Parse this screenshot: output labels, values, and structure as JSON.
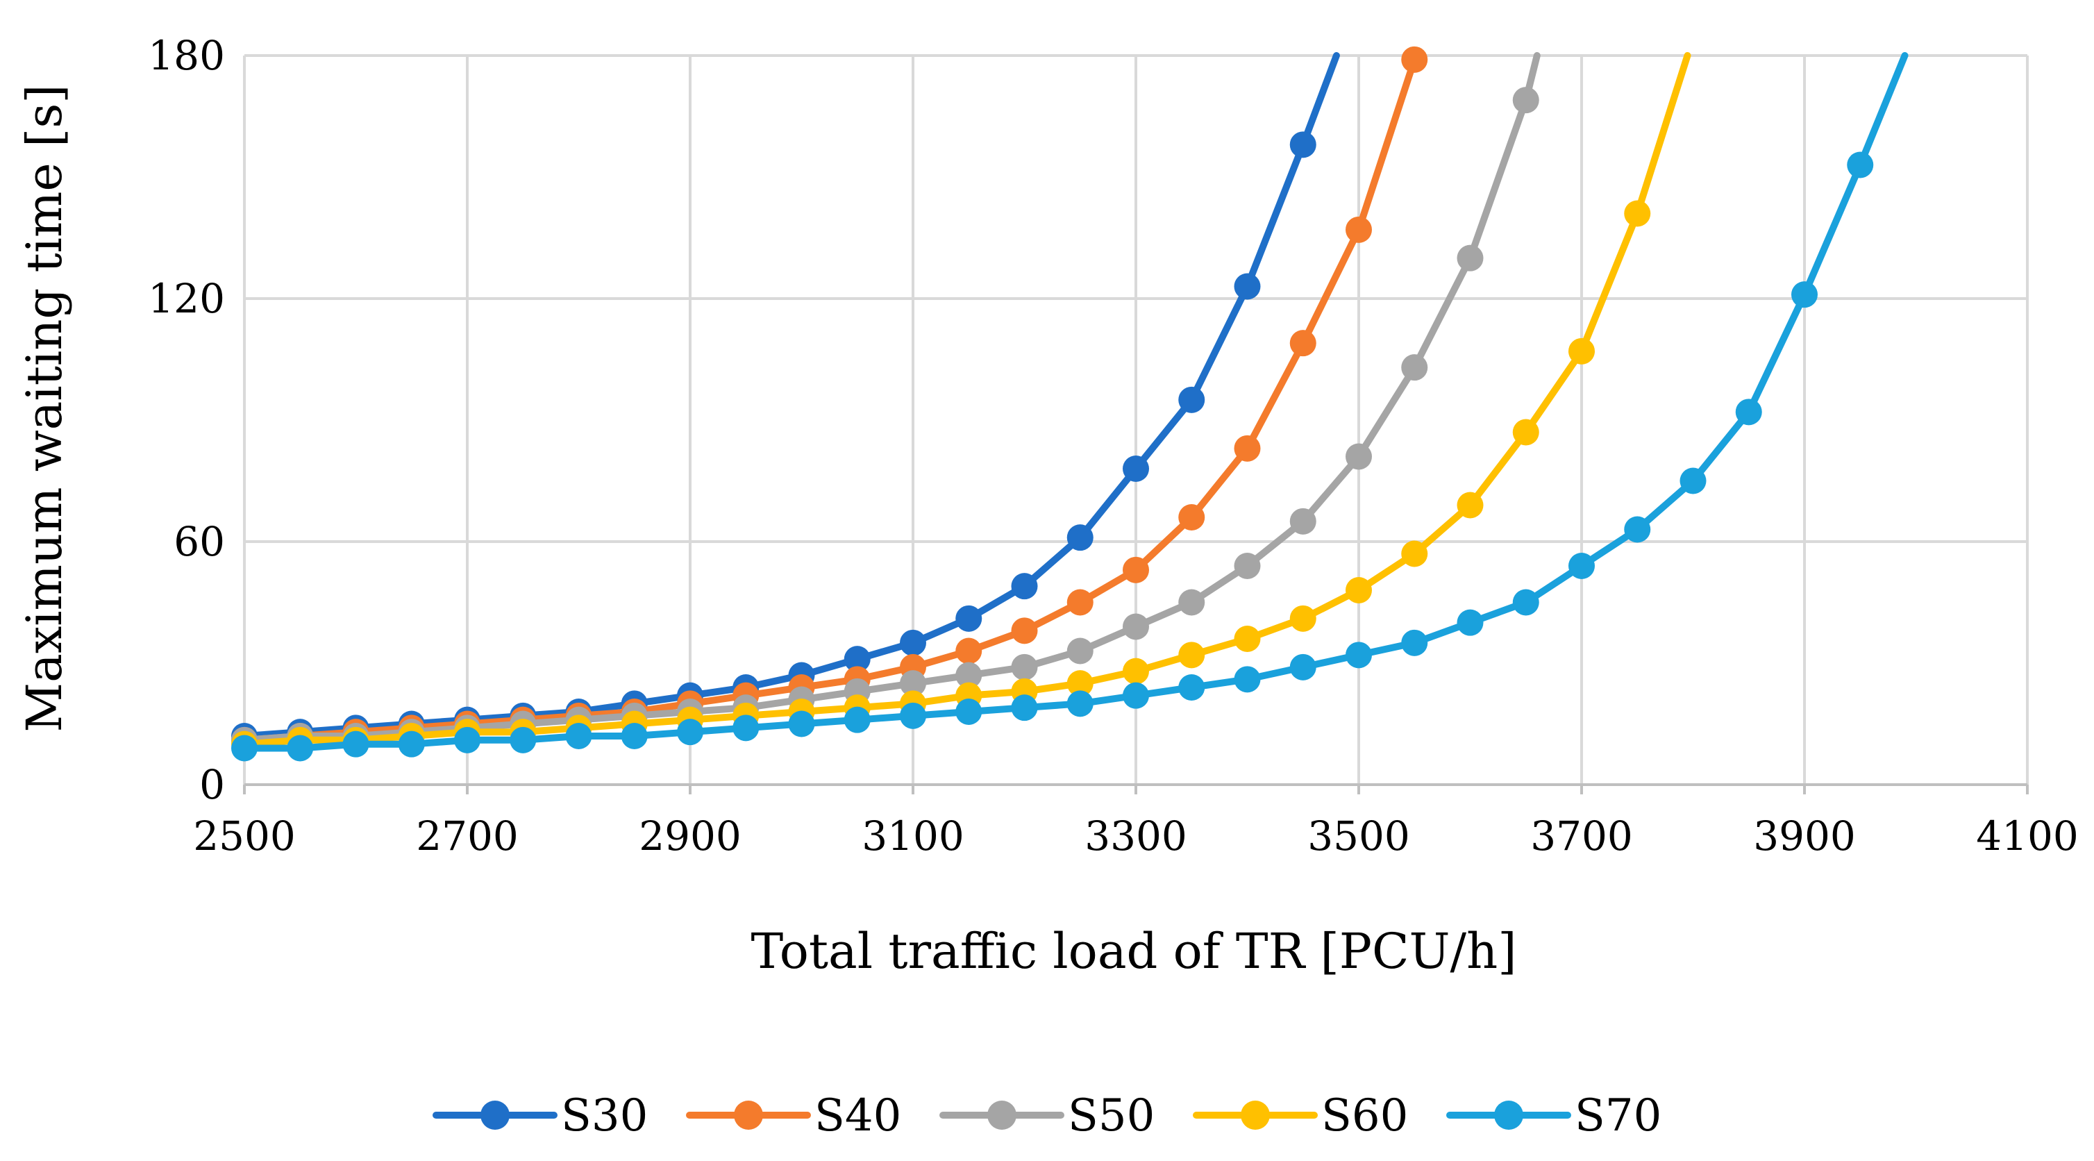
{
  "chart_data": {
    "type": "line",
    "title": "",
    "xlabel": "Total traffic load of TR [PCU/h]",
    "ylabel": "Maximum waiting time [s]",
    "xlim": [
      2500,
      4100
    ],
    "ylim": [
      0,
      180
    ],
    "x_ticks": [
      "2500",
      "2700",
      "2900",
      "3100",
      "3300",
      "3500",
      "3700",
      "3900",
      "4100"
    ],
    "y_ticks": [
      "0",
      "60",
      "120",
      "180"
    ],
    "grid": true,
    "legend_position": "bottom",
    "x": [
      2500,
      2550,
      2600,
      2650,
      2700,
      2750,
      2800,
      2850,
      2900,
      2950,
      3000,
      3050,
      3100,
      3150,
      3200,
      3250,
      3300,
      3350,
      3400,
      3450,
      3500,
      3550,
      3600,
      3650,
      3700,
      3750,
      3800,
      3850,
      3900,
      3950
    ],
    "series": [
      {
        "name": "S30",
        "color": "#1f6fc8",
        "values": [
          12,
          13,
          14,
          15,
          16,
          17,
          18,
          20,
          22,
          24,
          27,
          31,
          35,
          41,
          49,
          61,
          78,
          95,
          123,
          158,
          null,
          null,
          null,
          null,
          null,
          null,
          null,
          null,
          null,
          null
        ],
        "line_end": [
          3480,
          180
        ]
      },
      {
        "name": "S40",
        "color": "#f47b2c",
        "values": [
          11,
          12,
          13,
          14,
          15,
          16,
          17,
          18,
          20,
          22,
          24,
          26,
          29,
          33,
          38,
          45,
          53,
          66,
          83,
          109,
          137,
          179,
          null,
          null,
          null,
          null,
          null,
          null,
          null,
          null
        ],
        "line_end": null
      },
      {
        "name": "S50",
        "color": "#a5a5a5",
        "values": [
          11,
          12,
          12,
          13,
          14,
          15,
          16,
          17,
          18,
          19,
          21,
          23,
          25,
          27,
          29,
          33,
          39,
          45,
          54,
          65,
          81,
          103,
          130,
          169,
          null,
          null,
          null,
          null,
          null,
          null
        ],
        "line_end": [
          3660,
          180
        ]
      },
      {
        "name": "S60",
        "color": "#ffc000",
        "values": [
          10,
          11,
          11,
          12,
          13,
          13,
          14,
          15,
          16,
          17,
          18,
          19,
          20,
          22,
          23,
          25,
          28,
          32,
          36,
          41,
          48,
          57,
          69,
          87,
          107,
          141,
          null,
          null,
          null,
          null
        ],
        "line_end": [
          3795,
          180
        ]
      },
      {
        "name": "S70",
        "color": "#1aa1dc",
        "values": [
          9,
          9,
          10,
          10,
          11,
          11,
          12,
          12,
          13,
          14,
          15,
          16,
          17,
          18,
          19,
          20,
          22,
          24,
          26,
          29,
          32,
          35,
          40,
          45,
          54,
          63,
          75,
          92,
          121,
          153
        ],
        "line_end": [
          3990,
          180
        ]
      }
    ]
  }
}
